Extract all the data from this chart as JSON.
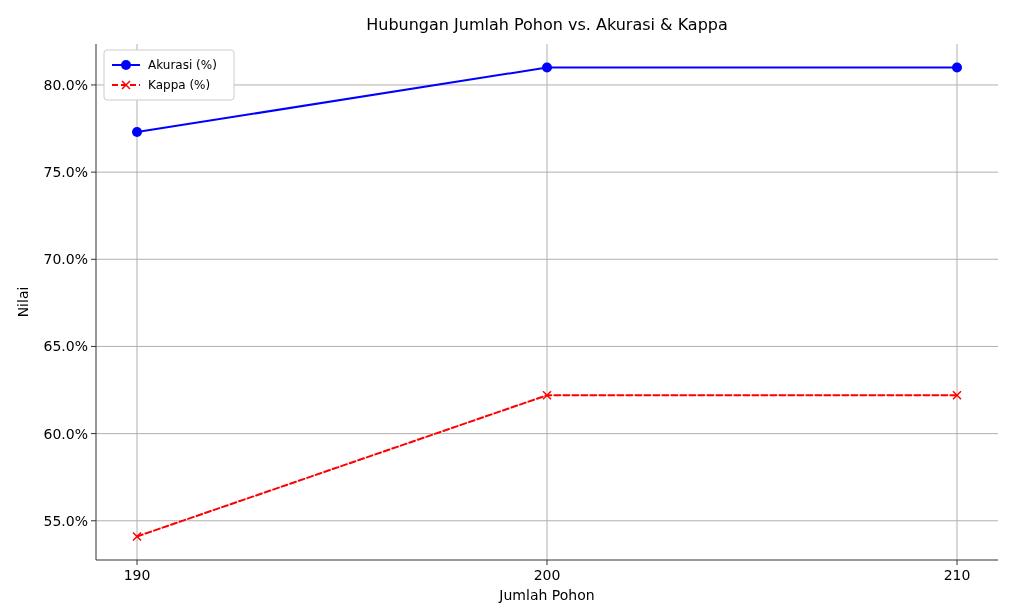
{
  "chart_data": {
    "type": "line",
    "title": "Hubungan Jumlah Pohon vs. Akurasi & Kappa",
    "xlabel": "Jumlah Pohon",
    "ylabel": "Nilai",
    "x": [
      190,
      200,
      210
    ],
    "series": [
      {
        "name": "Akurasi (%)",
        "color": "#0000ff",
        "values": [
          77.3,
          81.0,
          81.0
        ],
        "marker": "circle",
        "line_style": "solid"
      },
      {
        "name": "Kappa (%)",
        "color": "#ff0000",
        "values": [
          54.1,
          62.2,
          62.2
        ],
        "marker": "cross",
        "line_style": "dashed"
      }
    ],
    "xlim": [
      189,
      211
    ],
    "xticks": [
      190,
      200,
      210
    ],
    "ylim": [
      52.75,
      82.35
    ],
    "yticks": [
      {
        "value": 55,
        "label": "55.0%"
      },
      {
        "value": 60,
        "label": "60.0%"
      },
      {
        "value": 65,
        "label": "65.0%"
      },
      {
        "value": 70,
        "label": "70.0%"
      },
      {
        "value": 75,
        "label": "75.0%"
      },
      {
        "value": 80,
        "label": "80.0%"
      }
    ],
    "grid": true,
    "legend": "top left"
  }
}
